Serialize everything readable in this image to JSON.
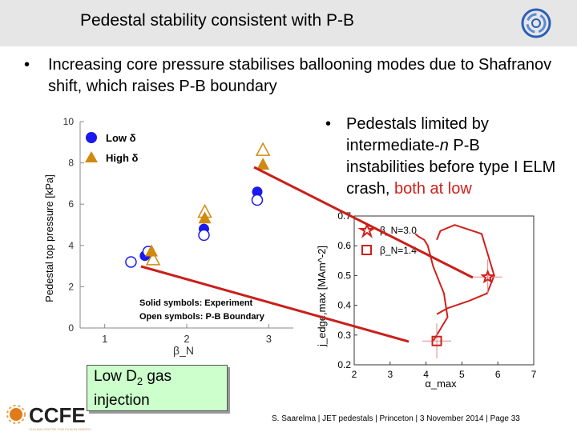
{
  "header": {
    "title": "Pedestal stability consistent with P-B"
  },
  "bullets": {
    "dot": "•",
    "main": "Increasing core pressure stabilises ballooning modes due to Shafranov shift, which raises P-B boundary",
    "side_prefix": "Pedestals limited by intermediate-",
    "side_n": "n",
    "side_mid": " P-B instabilities before type I ELM crash, ",
    "side_highlight": "both at low"
  },
  "callout": {
    "text_a": "Low D",
    "sub": "2",
    "text_b": " gas injection"
  },
  "footer": {
    "text": "S. Saarelma | JET pedestals | Princeton | 3 November 2014 | Page 33"
  },
  "logo": {
    "text": "CCFE",
    "subtitle": "CULHAM CENTRE FOR FUSION ENERGY"
  },
  "colors": {
    "blue": "#1a1aee",
    "orange": "#d08a10",
    "red": "#d0201a",
    "callout_bg": "#ccffcc"
  },
  "chart_data": [
    {
      "type": "scatter",
      "xlabel": "β_N",
      "ylabel": "Pedestal top pressure  [kPa]",
      "xlim": [
        0.7,
        3.3
      ],
      "ylim": [
        0,
        10
      ],
      "x_ticks": [
        "1",
        "2",
        "3"
      ],
      "y_ticks": [
        "0",
        "2",
        "4",
        "6",
        "8",
        "10"
      ],
      "legend": [
        "Low δ",
        "High δ"
      ],
      "annotations": [
        "Solid symbols: Experiment",
        "Open symbols: P-B Boundary"
      ],
      "series": [
        {
          "name": "Low δ",
          "marker": "circle",
          "kind": "Experiment",
          "x": [
            1.49,
            2.21,
            2.86
          ],
          "y": [
            3.5,
            4.8,
            6.6
          ]
        },
        {
          "name": "Low δ",
          "marker": "open-circle",
          "kind": "P-B Boundary",
          "x": [
            1.32,
            1.53,
            2.21,
            2.86
          ],
          "y": [
            3.2,
            3.7,
            4.5,
            6.2
          ]
        },
        {
          "name": "High δ",
          "marker": "triangle",
          "kind": "Experiment",
          "x": [
            1.57,
            2.22,
            2.93
          ],
          "y": [
            3.7,
            5.3,
            7.9
          ]
        },
        {
          "name": "High δ",
          "marker": "open-triangle",
          "kind": "P-B Boundary",
          "x": [
            1.59,
            2.22,
            2.93
          ],
          "y": [
            3.3,
            5.6,
            8.6
          ]
        }
      ]
    },
    {
      "type": "line",
      "xlabel": "α_max",
      "ylabel": "j_edge,max  [MAm^-2]",
      "xlim": [
        2,
        7
      ],
      "ylim": [
        0.2,
        0.7
      ],
      "x_ticks": [
        "2",
        "3",
        "4",
        "5",
        "6",
        "7"
      ],
      "y_ticks": [
        "0.2",
        "0.3",
        "0.4",
        "0.5",
        "0.6",
        "0.7"
      ],
      "legend": [
        "β_N=3.0",
        "β_N=1.4"
      ],
      "series": [
        {
          "name": "β_N=3.0",
          "x": [
            4.3,
            4.6,
            5.2,
            5.7,
            5.9,
            5.55,
            4.8,
            4.4,
            4.3
          ],
          "y": [
            0.37,
            0.39,
            0.415,
            0.44,
            0.5,
            0.64,
            0.67,
            0.65,
            0.62
          ]
        },
        {
          "name": "β_N=1.4",
          "x": [
            4.2,
            4.4,
            4.6,
            4.5,
            4.2,
            4.05,
            3.95,
            3.8,
            3.7
          ],
          "y": [
            0.28,
            0.32,
            0.36,
            0.44,
            0.53,
            0.6,
            0.62,
            0.63,
            0.64
          ]
        }
      ],
      "markers": [
        {
          "name": "β_N=3.0",
          "shape": "star",
          "x": 5.72,
          "y": 0.495
        },
        {
          "name": "β_N=1.4",
          "shape": "square",
          "x": 4.3,
          "y": 0.28
        }
      ]
    }
  ]
}
